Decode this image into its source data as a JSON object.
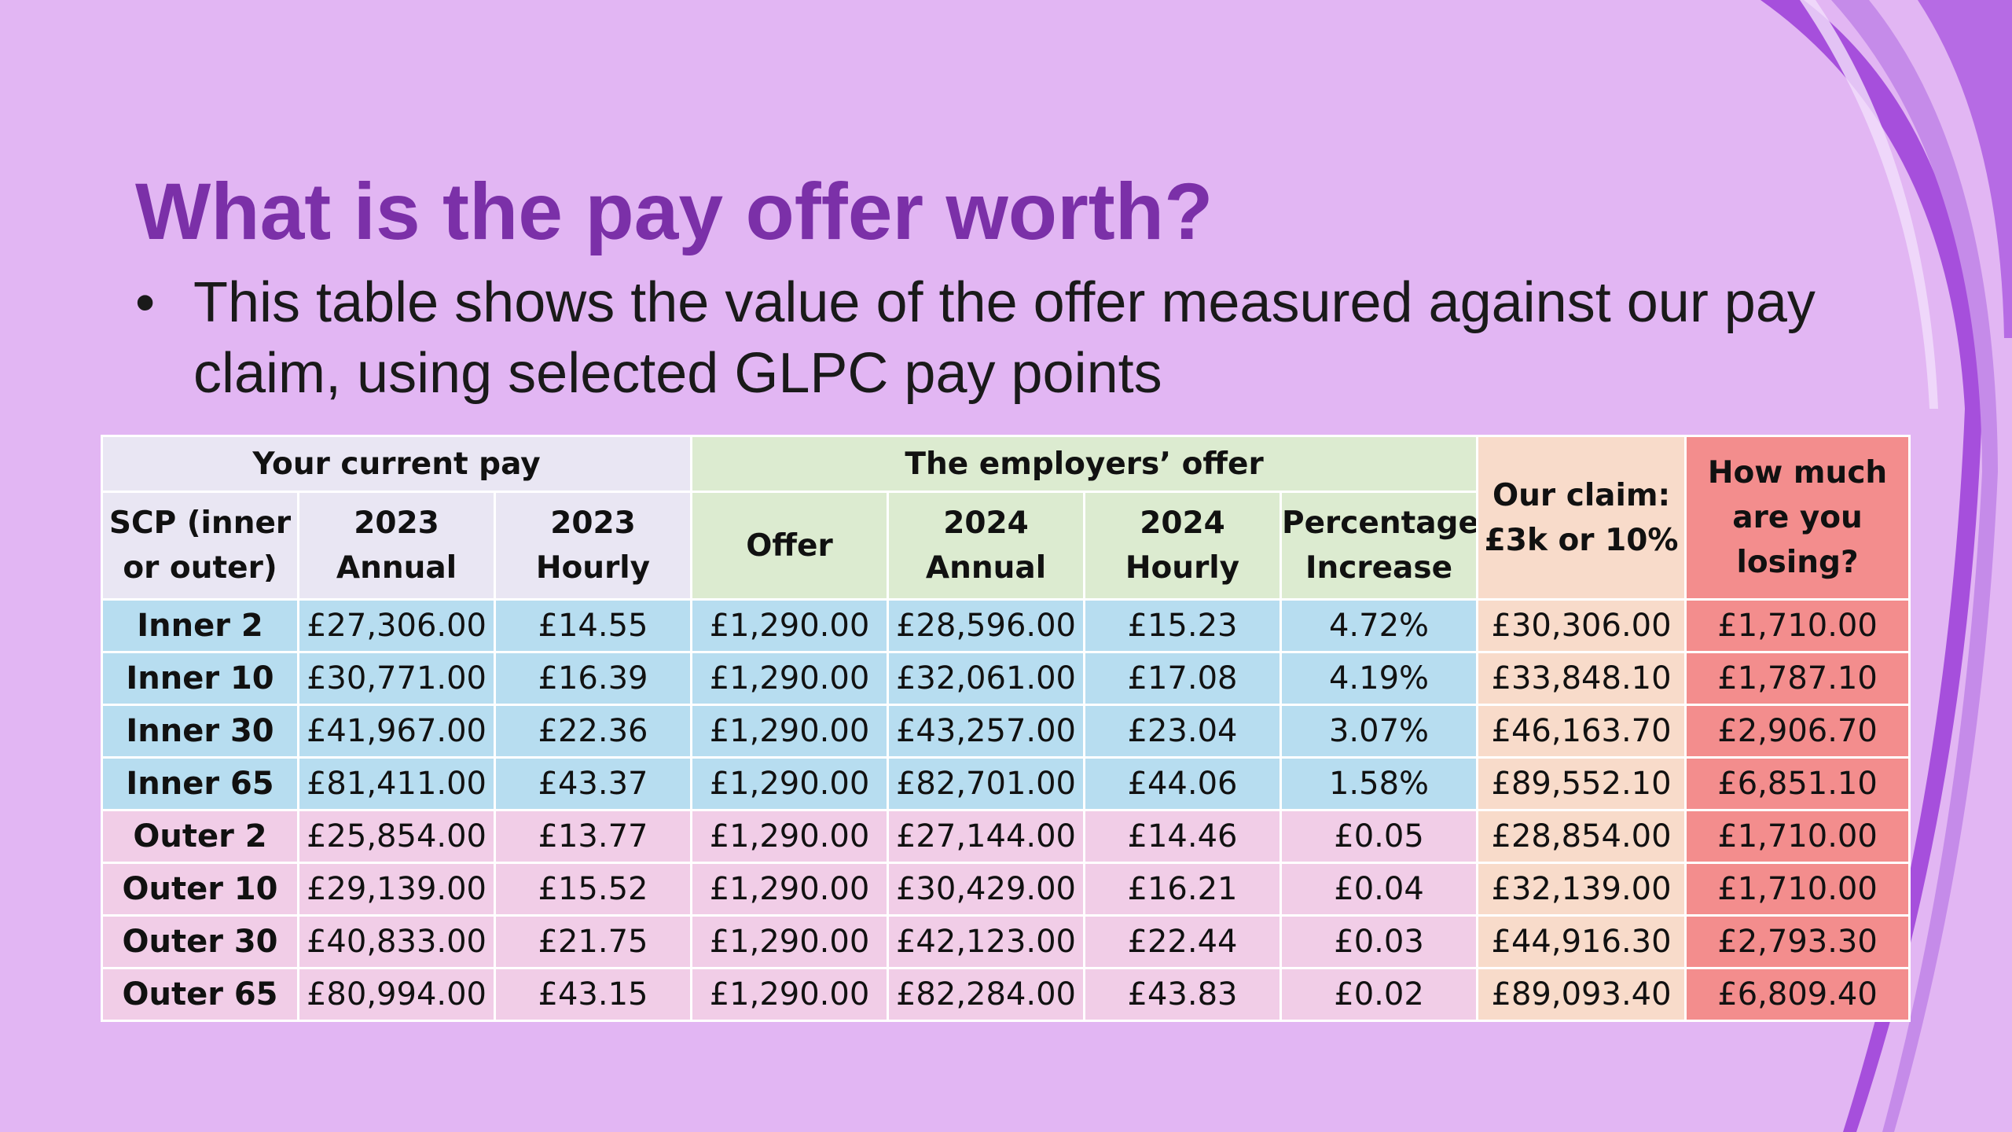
{
  "slide": {
    "title": "What is the pay offer worth?",
    "bullet_symbol": "•",
    "bullet_text": "This table shows the value of the offer measured against our pay claim, using selected GLPC pay points"
  },
  "colors": {
    "background": "#e2b6f3",
    "title": "#7b30a8",
    "current_pay_header": "#e9e6f3",
    "employers_offer": "#dcebd0",
    "claim": "#f8dbca",
    "losing": "#f38d8d",
    "inner_rows": "#b7ddf0",
    "outer_rows": "#f1cde7",
    "ribbon": "#a64fdc"
  },
  "table": {
    "groups": {
      "current": "Your current pay",
      "offer": "The employers’ offer",
      "claim": "Our claim:£3k or 10%",
      "losing": "How much are you losing?"
    },
    "columns": [
      "SCP (inner or outer)",
      "2023 Annual",
      "2023 Hourly",
      "Offer",
      "2024 Annual",
      "2024 Hourly",
      "Percentage Increase"
    ],
    "rows": [
      {
        "scp": "Inner 2",
        "annual_2023": "£27,306.00",
        "hourly_2023": "£14.55",
        "offer": "£1,290.00",
        "annual_2024": "£28,596.00",
        "hourly_2024": "£15.23",
        "pct": "4.72%",
        "claim": "£30,306.00",
        "losing": "£1,710.00"
      },
      {
        "scp": "Inner 10",
        "annual_2023": "£30,771.00",
        "hourly_2023": "£16.39",
        "offer": "£1,290.00",
        "annual_2024": "£32,061.00",
        "hourly_2024": "£17.08",
        "pct": "4.19%",
        "claim": "£33,848.10",
        "losing": "£1,787.10"
      },
      {
        "scp": "Inner 30",
        "annual_2023": "£41,967.00",
        "hourly_2023": "£22.36",
        "offer": "£1,290.00",
        "annual_2024": "£43,257.00",
        "hourly_2024": "£23.04",
        "pct": "3.07%",
        "claim": "£46,163.70",
        "losing": "£2,906.70"
      },
      {
        "scp": "Inner 65",
        "annual_2023": "£81,411.00",
        "hourly_2023": "£43.37",
        "offer": "£1,290.00",
        "annual_2024": "£82,701.00",
        "hourly_2024": "£44.06",
        "pct": "1.58%",
        "claim": "£89,552.10",
        "losing": "£6,851.10"
      },
      {
        "scp": "Outer 2",
        "annual_2023": "£25,854.00",
        "hourly_2023": "£13.77",
        "offer": "£1,290.00",
        "annual_2024": "£27,144.00",
        "hourly_2024": "£14.46",
        "pct": "£0.05",
        "claim": "£28,854.00",
        "losing": "£1,710.00"
      },
      {
        "scp": "Outer 10",
        "annual_2023": "£29,139.00",
        "hourly_2023": "£15.52",
        "offer": "£1,290.00",
        "annual_2024": "£30,429.00",
        "hourly_2024": "£16.21",
        "pct": "£0.04",
        "claim": "£32,139.00",
        "losing": "£1,710.00"
      },
      {
        "scp": "Outer 30",
        "annual_2023": "£40,833.00",
        "hourly_2023": "£21.75",
        "offer": "£1,290.00",
        "annual_2024": "£42,123.00",
        "hourly_2024": "£22.44",
        "pct": "£0.03",
        "claim": "£44,916.30",
        "losing": "£2,793.30"
      },
      {
        "scp": "Outer 65",
        "annual_2023": "£80,994.00",
        "hourly_2023": "£43.15",
        "offer": "£1,290.00",
        "annual_2024": "£82,284.00",
        "hourly_2024": "£43.83",
        "pct": "£0.02",
        "claim": "£89,093.40",
        "losing": "£6,809.40"
      }
    ]
  }
}
